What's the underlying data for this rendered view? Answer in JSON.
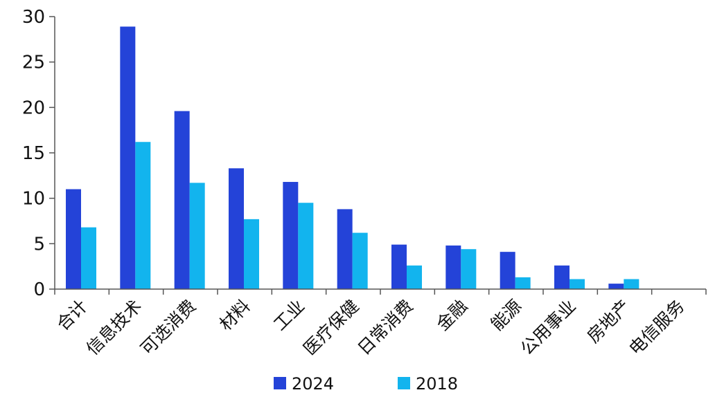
{
  "chart_data": {
    "type": "bar",
    "categories": [
      "合计",
      "信息技术",
      "可选消费",
      "材料",
      "工业",
      "医疗保健",
      "日常消费",
      "金融",
      "能源",
      "公用事业",
      "房地产",
      "电信服务"
    ],
    "series": [
      {
        "name": "2024",
        "color": "#2443d8",
        "values": [
          11.0,
          28.9,
          19.6,
          13.3,
          11.8,
          8.8,
          4.9,
          4.8,
          4.1,
          2.6,
          0.6,
          0.0
        ]
      },
      {
        "name": "2018",
        "color": "#12b4ee",
        "values": [
          6.8,
          16.2,
          11.7,
          7.7,
          9.5,
          6.2,
          2.6,
          4.4,
          1.3,
          1.1,
          1.1,
          0.0
        ]
      }
    ],
    "y_ticks": [
      "0",
      "5",
      "10",
      "15",
      "20",
      "25",
      "30"
    ],
    "ylim": [
      0,
      30
    ],
    "grid": false,
    "legend_position": "bottom"
  }
}
